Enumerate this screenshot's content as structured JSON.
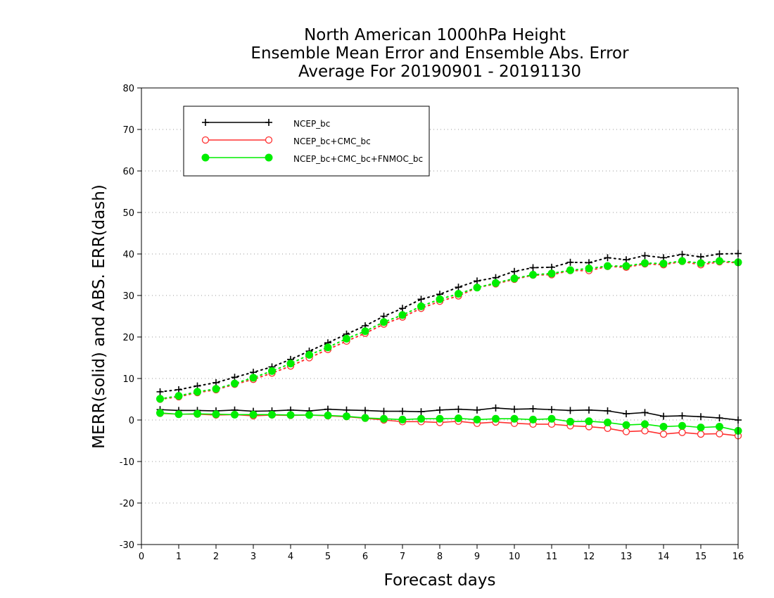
{
  "chart_data": {
    "type": "line",
    "title_lines": [
      "North American 1000hPa Height",
      "Ensemble Mean Error and Ensemble Abs. Error",
      "Average For 20190901 - 20191130"
    ],
    "xlabel": "Forecast days",
    "ylabel": "MERR(solid) and ABS. ERR(dash)",
    "xlim": [
      0,
      16
    ],
    "ylim": [
      -30,
      80
    ],
    "xticks": [
      0,
      1,
      2,
      3,
      4,
      5,
      6,
      7,
      8,
      9,
      10,
      11,
      12,
      13,
      14,
      15,
      16
    ],
    "yticks": [
      -30,
      -20,
      -10,
      0,
      10,
      20,
      30,
      40,
      50,
      60,
      70,
      80
    ],
    "grid": "horizontal dotted",
    "legend_position": "top-left",
    "x": [
      0.5,
      1,
      1.5,
      2,
      2.5,
      3,
      3.5,
      4,
      4.5,
      5,
      5.5,
      6,
      6.5,
      7,
      7.5,
      8,
      8.5,
      9,
      9.5,
      10,
      10.5,
      11,
      11.5,
      12,
      12.5,
      13,
      13.5,
      14,
      14.5,
      15,
      15.5,
      16
    ],
    "series": [
      {
        "name": "NCEP_bc",
        "color": "#000000",
        "marker": "plus",
        "merr": [
          2.5,
          2.3,
          2.3,
          2.2,
          2.4,
          2.1,
          2.2,
          2.4,
          2.2,
          2.6,
          2.4,
          2.3,
          2.1,
          2.1,
          2.0,
          2.4,
          2.6,
          2.4,
          2.9,
          2.6,
          2.7,
          2.5,
          2.3,
          2.4,
          2.2,
          1.5,
          1.8,
          0.9,
          1.0,
          0.8,
          0.5,
          0.0
        ],
        "abs_err": [
          6.8,
          7.3,
          8.2,
          9.0,
          10.3,
          11.5,
          12.8,
          14.6,
          16.6,
          18.6,
          20.7,
          22.7,
          25.0,
          26.9,
          29.1,
          30.3,
          32.0,
          33.5,
          34.3,
          35.8,
          36.7,
          36.8,
          38.0,
          37.9,
          39.1,
          38.6,
          39.6,
          39.1,
          39.9,
          39.3,
          40.0,
          40.1
        ]
      },
      {
        "name": "NCEP_bc+CMC_bc",
        "color": "#ff3030",
        "marker": "open-circle",
        "merr": [
          1.6,
          1.4,
          1.4,
          1.2,
          1.3,
          1.0,
          1.2,
          1.1,
          1.2,
          1.0,
          0.8,
          0.4,
          0.0,
          -0.4,
          -0.4,
          -0.6,
          -0.3,
          -0.8,
          -0.5,
          -0.8,
          -1.0,
          -1.0,
          -1.4,
          -1.6,
          -2.0,
          -2.8,
          -2.6,
          -3.4,
          -3.0,
          -3.4,
          -3.3,
          -3.8
        ],
        "abs_err": [
          5.0,
          5.6,
          6.6,
          7.3,
          8.6,
          9.8,
          11.3,
          13.0,
          15.0,
          17.0,
          19.0,
          20.9,
          23.1,
          24.8,
          26.9,
          28.6,
          29.9,
          31.9,
          32.8,
          33.9,
          34.9,
          35.0,
          36.0,
          36.0,
          37.0,
          36.8,
          37.6,
          37.4,
          38.2,
          37.4,
          38.1,
          37.9
        ]
      },
      {
        "name": "NCEP_bc+CMC_bc+FNMOC_bc",
        "color": "#00ee00",
        "marker": "filled-circle",
        "merr": [
          1.7,
          1.4,
          1.5,
          1.4,
          1.3,
          1.3,
          1.3,
          1.2,
          1.2,
          1.1,
          0.9,
          0.5,
          0.3,
          0.1,
          0.3,
          0.3,
          0.4,
          0.1,
          0.3,
          0.3,
          0.1,
          0.3,
          -0.4,
          -0.3,
          -0.6,
          -1.2,
          -1.0,
          -1.6,
          -1.4,
          -1.8,
          -1.6,
          -2.6
        ],
        "abs_err": [
          5.1,
          5.8,
          6.8,
          7.5,
          8.8,
          10.2,
          11.8,
          13.6,
          15.7,
          17.5,
          19.6,
          21.4,
          23.6,
          25.3,
          27.4,
          29.1,
          30.4,
          31.9,
          33.0,
          34.1,
          35.0,
          35.3,
          36.1,
          36.5,
          37.1,
          37.1,
          37.8,
          37.7,
          38.3,
          37.8,
          38.3,
          38.0
        ]
      }
    ]
  }
}
